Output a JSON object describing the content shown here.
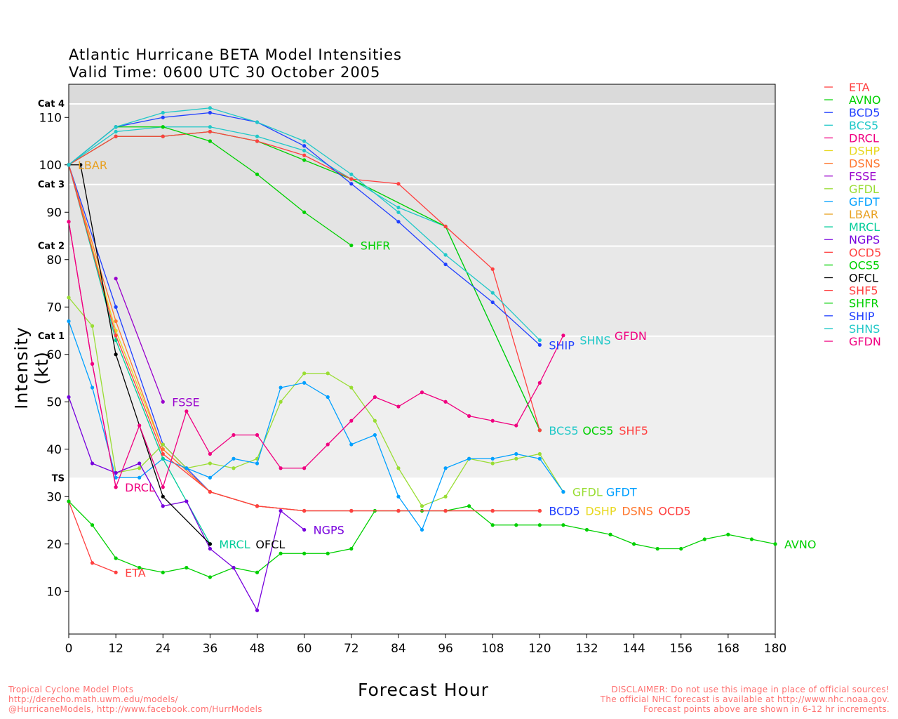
{
  "title_line1": "Atlantic Hurricane BETA Model Intensities",
  "title_line2": "Valid Time: 0600 UTC 30 October 2005",
  "footer_left": [
    "Tropical Cyclone Model Plots",
    "http://derecho.math.uwm.edu/models/",
    "@HurricaneModels, http://www.facebook.com/HurrModels"
  ],
  "footer_right": [
    "DISCLAIMER: Do not use this image in place of official sources!",
    "The official NHC forecast is available at http://www.nhc.noaa.gov.",
    "Forecast points above are shown in 6-12 hr increments."
  ],
  "chart_data": {
    "type": "line",
    "xlabel": "Forecast Hour",
    "ylabel": "Intensity (kt)",
    "xlim": [
      0,
      180
    ],
    "ylim": [
      1,
      117
    ],
    "xticks": [
      0,
      12,
      24,
      36,
      48,
      60,
      72,
      84,
      96,
      108,
      120,
      132,
      144,
      156,
      168,
      180
    ],
    "yticks": [
      10,
      20,
      30,
      40,
      50,
      60,
      70,
      80,
      90,
      100,
      110
    ],
    "grid": false,
    "legend_placement": "right",
    "categories": [
      {
        "label": "Cat 4",
        "threshold": 113,
        "color": "#dadada"
      },
      {
        "label": "Cat 3",
        "threshold": 96,
        "color": "#e0e0e0"
      },
      {
        "label": "Cat 2",
        "threshold": 83,
        "color": "#e4e4e4"
      },
      {
        "label": "Cat 1",
        "threshold": 64,
        "color": "#e8e8e8"
      },
      {
        "label": "TS",
        "threshold": 34,
        "color": "#efefef"
      }
    ],
    "series": [
      {
        "name": "ETA",
        "color": "#ff4040",
        "x": [
          0,
          6,
          12
        ],
        "y": [
          29,
          16,
          14
        ]
      },
      {
        "name": "AVNO",
        "color": "#00d000",
        "x": [
          0,
          6,
          12,
          18,
          24,
          30,
          36,
          42,
          48,
          54,
          60,
          66,
          72,
          78,
          84,
          90,
          96,
          102,
          108,
          114,
          120,
          126,
          132,
          138,
          144,
          150,
          156,
          162,
          168,
          174,
          180
        ],
        "y": [
          29,
          24,
          17,
          15,
          14,
          15,
          13,
          15,
          14,
          18,
          18,
          18,
          19,
          27,
          27,
          27,
          27,
          28,
          24,
          24,
          24,
          24,
          23,
          22,
          20,
          19,
          19,
          21,
          22,
          21,
          20
        ]
      },
      {
        "name": "BCD5",
        "color": "#2040ff",
        "x": [
          0,
          12,
          24,
          36,
          48,
          60,
          72,
          84,
          96,
          108,
          120
        ],
        "y": [
          100,
          70,
          41,
          31,
          28,
          27,
          27,
          27,
          27,
          27,
          27
        ]
      },
      {
        "name": "BCS5",
        "color": "#20c8c8",
        "x": [
          0,
          12,
          24,
          36,
          48,
          60,
          72,
          84,
          96,
          120
        ],
        "y": [
          100,
          107,
          108,
          108,
          106,
          103,
          97,
          91,
          87,
          44
        ]
      },
      {
        "name": "DRCL",
        "color": "#f00080",
        "x": [
          0,
          6,
          12
        ],
        "y": [
          88,
          58,
          32
        ]
      },
      {
        "name": "DSHP",
        "color": "#e8d820",
        "x": [
          0,
          12,
          24,
          36,
          48,
          60,
          72,
          84,
          96,
          108,
          120
        ],
        "y": [
          100,
          65,
          40,
          31,
          28,
          27,
          27,
          27,
          27,
          27,
          27
        ]
      },
      {
        "name": "DSNS",
        "color": "#ff7830",
        "x": [
          0,
          12,
          24,
          36,
          48,
          60,
          72,
          84,
          96,
          108,
          120
        ],
        "y": [
          100,
          67,
          40,
          31,
          28,
          27,
          27,
          27,
          27,
          27,
          27
        ]
      },
      {
        "name": "FSSE",
        "color": "#9900cc",
        "x": [
          12,
          24
        ],
        "y": [
          76,
          50
        ]
      },
      {
        "name": "GFDL",
        "color": "#99dd33",
        "x": [
          0,
          6,
          12,
          18,
          24,
          30,
          36,
          42,
          48,
          54,
          60,
          66,
          72,
          78,
          84,
          90,
          96,
          102,
          108,
          114,
          120,
          126
        ],
        "y": [
          72,
          66,
          35,
          36,
          41,
          36,
          37,
          36,
          38,
          50,
          56,
          56,
          53,
          46,
          36,
          28,
          30,
          38,
          37,
          38,
          39,
          31
        ]
      },
      {
        "name": "GFDT",
        "color": "#00a0ff",
        "x": [
          0,
          6,
          12,
          18,
          24,
          30,
          36,
          42,
          48,
          54,
          60,
          66,
          72,
          78,
          84,
          90,
          96,
          102,
          108,
          114,
          120,
          126
        ],
        "y": [
          67,
          53,
          34,
          34,
          38,
          36,
          34,
          38,
          37,
          53,
          54,
          51,
          41,
          43,
          30,
          23,
          36,
          38,
          38,
          39,
          38,
          31
        ]
      },
      {
        "name": "LBAR",
        "color": "#e8a020",
        "x": [
          0
        ],
        "y": [
          100
        ]
      },
      {
        "name": "MRCL",
        "color": "#00cc99",
        "x": [
          0,
          12,
          24,
          36
        ],
        "y": [
          100,
          63,
          38,
          20
        ]
      },
      {
        "name": "NGPS",
        "color": "#7700dd",
        "x": [
          0,
          6,
          12,
          18,
          24,
          30,
          36,
          42,
          48,
          54,
          60
        ],
        "y": [
          51,
          37,
          35,
          37,
          28,
          29,
          19,
          15,
          6,
          27,
          23
        ]
      },
      {
        "name": "OCD5",
        "color": "#ff4040",
        "x": [
          0,
          12,
          24,
          36,
          48,
          60,
          72,
          84,
          96,
          108,
          120
        ],
        "y": [
          100,
          64,
          39,
          31,
          28,
          27,
          27,
          27,
          27,
          27,
          27
        ]
      },
      {
        "name": "OCS5",
        "color": "#00d000",
        "x": [
          0,
          12,
          24,
          36,
          48,
          60,
          72,
          96,
          120
        ],
        "y": [
          100,
          106,
          106,
          107,
          105,
          101,
          97,
          87,
          44
        ]
      },
      {
        "name": "OFCL",
        "color": "#000000",
        "x": [
          0,
          3,
          12,
          24,
          36
        ],
        "y": [
          100,
          100,
          60,
          30,
          20
        ]
      },
      {
        "name": "SHF5",
        "color": "#ff4040",
        "x": [
          0,
          12,
          24,
          36,
          48,
          60,
          72,
          84,
          96,
          108,
          120
        ],
        "y": [
          100,
          106,
          106,
          107,
          105,
          102,
          97,
          96,
          87,
          78,
          44
        ]
      },
      {
        "name": "SHFR",
        "color": "#00d000",
        "x": [
          0,
          12,
          24,
          36,
          48,
          60,
          72
        ],
        "y": [
          100,
          108,
          108,
          105,
          98,
          90,
          83
        ]
      },
      {
        "name": "SHIP",
        "color": "#2040ff",
        "x": [
          0,
          12,
          24,
          36,
          48,
          60,
          72,
          84,
          96,
          108,
          120
        ],
        "y": [
          100,
          108,
          110,
          111,
          109,
          104,
          96,
          88,
          79,
          71,
          62
        ]
      },
      {
        "name": "SHNS",
        "color": "#20c8c8",
        "x": [
          0,
          12,
          24,
          36,
          48,
          60,
          72,
          84,
          96,
          108,
          120
        ],
        "y": [
          100,
          108,
          111,
          112,
          109,
          105,
          98,
          90,
          81,
          73,
          63
        ]
      },
      {
        "name": "GFDN",
        "color": "#f00080",
        "x": [
          0,
          6,
          12,
          18,
          24,
          30,
          36,
          42,
          48,
          54,
          60,
          66,
          72,
          78,
          84,
          90,
          96,
          102,
          108,
          114,
          120,
          126
        ],
        "y": [
          88,
          58,
          32,
          45,
          32,
          48,
          39,
          43,
          43,
          36,
          36,
          41,
          46,
          51,
          49,
          52,
          50,
          47,
          46,
          45,
          54,
          64
        ]
      }
    ]
  }
}
